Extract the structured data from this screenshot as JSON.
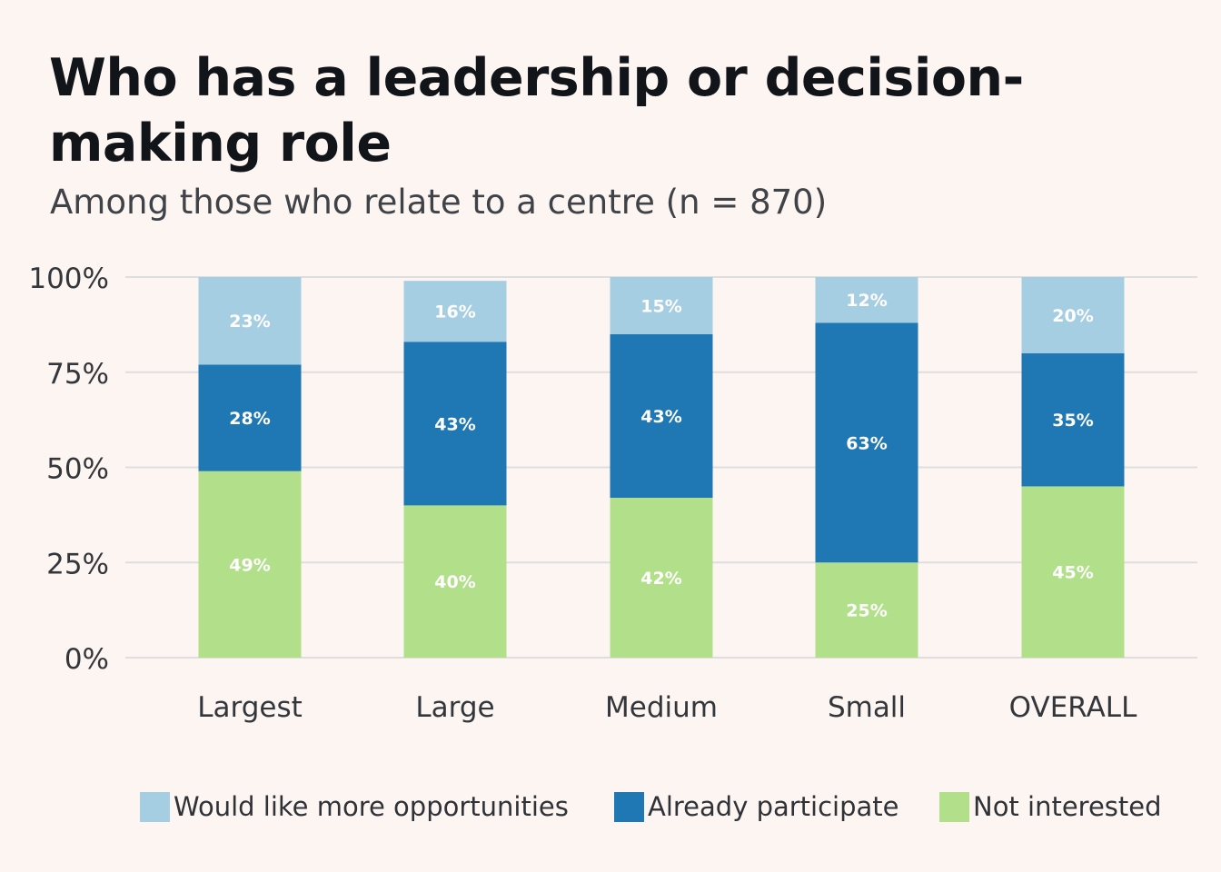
{
  "title": "Who has a leadership or decision-making role",
  "subtitle": "Among those who relate to a centre (n = 870)",
  "colors": {
    "background": "#fdf5f2",
    "grid": "#dedede",
    "would_like_more": "#a6cee3",
    "already_participate": "#1f78b4",
    "not_interested": "#b2df8a"
  },
  "chart_data": {
    "type": "bar",
    "stacked": true,
    "categories": [
      "Largest",
      "Large",
      "Medium",
      "Small",
      "OVERALL"
    ],
    "ylim": [
      0,
      100
    ],
    "yticks": [
      "0%",
      "25%",
      "50%",
      "75%",
      "100%"
    ],
    "grid": true,
    "legend_position": "bottom",
    "series": [
      {
        "name": "Not interested",
        "color": "#b2df8a",
        "values": [
          49,
          40,
          42,
          25,
          45
        ],
        "labels": [
          "49%",
          "40%",
          "42%",
          "25%",
          "45%"
        ]
      },
      {
        "name": "Already participate",
        "color": "#1f78b4",
        "values": [
          28,
          43,
          43,
          63,
          35
        ],
        "labels": [
          "28%",
          "43%",
          "43%",
          "63%",
          "35%"
        ]
      },
      {
        "name": "Would like more opportunities",
        "color": "#a6cee3",
        "values": [
          23,
          16,
          15,
          12,
          20
        ],
        "labels": [
          "23%",
          "16%",
          "15%",
          "12%",
          "20%"
        ]
      }
    ]
  },
  "legend": [
    {
      "label": "Would like more opportunities",
      "color": "#a6cee3"
    },
    {
      "label": "Already participate",
      "color": "#1f78b4"
    },
    {
      "label": "Not interested",
      "color": "#b2df8a"
    }
  ]
}
